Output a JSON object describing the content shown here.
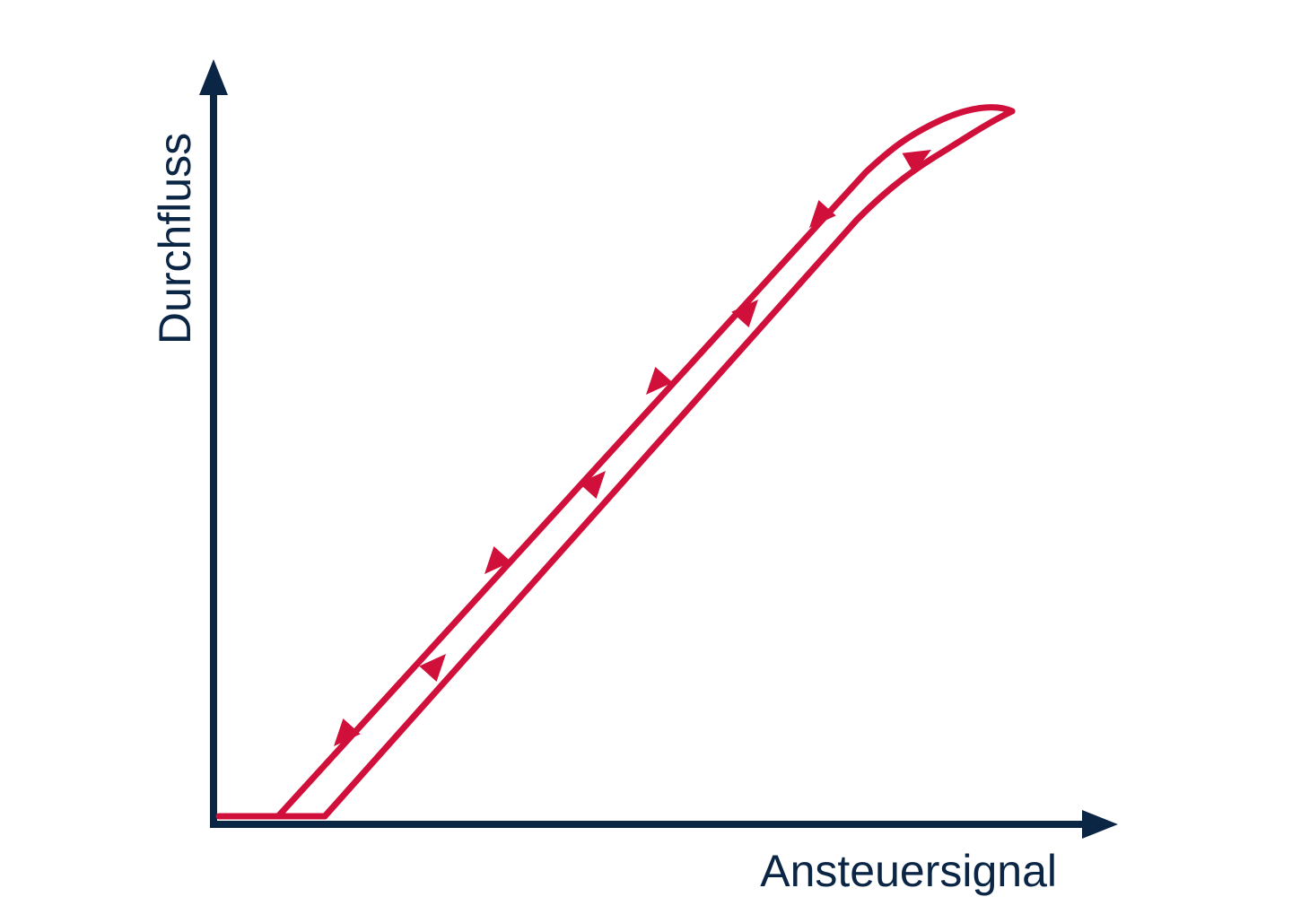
{
  "diagram": {
    "x_axis_label": "Ansteuersignal",
    "y_axis_label": "Durchfluss",
    "colors": {
      "axis": "#0b2545",
      "curve": "#d0103a",
      "background": "#ffffff"
    },
    "curve_description": "hysteresis loop: opening path (lower, arrows up) and closing path (upper, arrows down)"
  }
}
